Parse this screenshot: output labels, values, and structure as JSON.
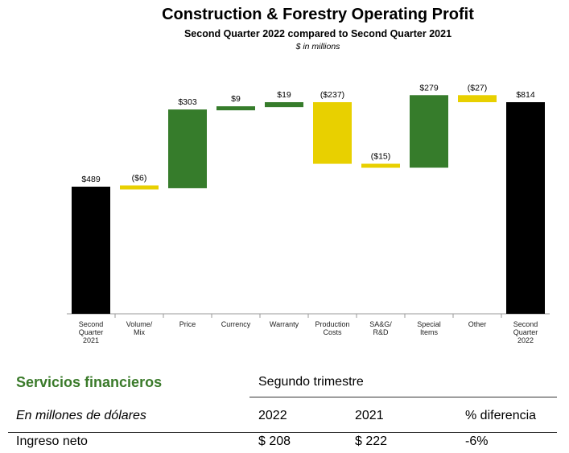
{
  "chart_data": {
    "type": "waterfall",
    "title": "Construction & Forestry Operating Profit",
    "subtitle": "Second Quarter 2022 compared to Second Quarter 2021",
    "units": "$ in millions",
    "categories": [
      "Second\nQuarter\n2021",
      "Volume/\nMix",
      "Price",
      "Currency",
      "Warranty",
      "Production\nCosts",
      "SA&G/\nR&D",
      "Special\nItems",
      "Other",
      "Second\nQuarter\n2022"
    ],
    "values": [
      489,
      -6,
      303,
      9,
      19,
      -237,
      -15,
      279,
      -27,
      814
    ],
    "kinds": [
      "total",
      "delta",
      "delta",
      "delta",
      "delta",
      "delta",
      "delta",
      "delta",
      "delta",
      "total"
    ],
    "labels": [
      "$489",
      "($6)",
      "$303",
      "$9",
      "$19",
      "($237)",
      "($15)",
      "$279",
      "($27)",
      "$814"
    ],
    "ylim": [
      0,
      814
    ],
    "colors": {
      "total": "#000000",
      "increase": "#367c2b",
      "decrease": "#e8d000"
    }
  },
  "table": {
    "heading": "Servicios financieros",
    "period_header": "Segundo trimestre",
    "units_label": "En millones de dólares",
    "columns": [
      "2022",
      "2021",
      "% diferencia"
    ],
    "row": {
      "label": "Ingreso neto",
      "values": [
        "$ 208",
        "$ 222",
        "-6%"
      ]
    }
  }
}
